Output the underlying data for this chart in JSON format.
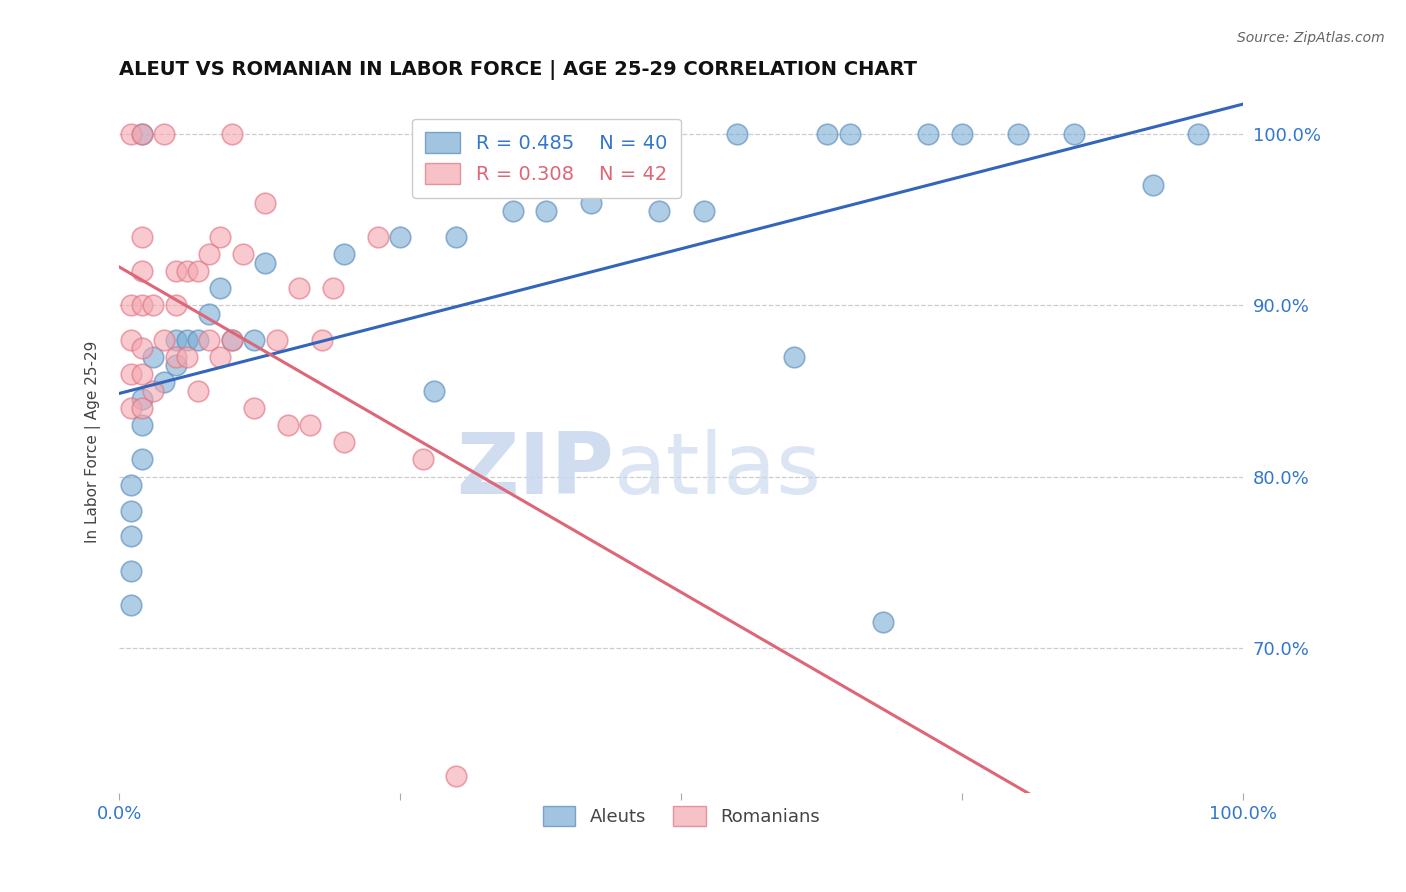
{
  "title": "ALEUT VS ROMANIAN IN LABOR FORCE | AGE 25-29 CORRELATION CHART",
  "source": "Source: ZipAtlas.com",
  "ylabel": "In Labor Force | Age 25-29",
  "xlim": [
    0.0,
    1.0
  ],
  "ylim": [
    0.615,
    1.025
  ],
  "ytick_positions": [
    0.7,
    0.8,
    0.9,
    1.0
  ],
  "ytick_labels": [
    "70.0%",
    "80.0%",
    "90.0%",
    "100.0%"
  ],
  "grid_color": "#cccccc",
  "background_color": "#ffffff",
  "aleut_color": "#7aadd4",
  "aleut_edge_color": "#5588bb",
  "romanian_color": "#f4a8b0",
  "romanian_edge_color": "#e07080",
  "aleut_line_color": "#3366bb",
  "romanian_line_color": "#dd6677",
  "aleut_R": 0.485,
  "aleut_N": 40,
  "romanian_R": 0.308,
  "romanian_N": 42,
  "watermark_zip": "ZIP",
  "watermark_atlas": "atlas",
  "aleut_x": [
    0.01,
    0.01,
    0.01,
    0.01,
    0.01,
    0.02,
    0.02,
    0.02,
    0.02,
    0.03,
    0.04,
    0.05,
    0.05,
    0.06,
    0.07,
    0.08,
    0.09,
    0.1,
    0.12,
    0.13,
    0.2,
    0.25,
    0.28,
    0.3,
    0.35,
    0.38,
    0.42,
    0.48,
    0.52,
    0.55,
    0.6,
    0.63,
    0.65,
    0.68,
    0.72,
    0.75,
    0.8,
    0.85,
    0.92,
    0.96
  ],
  "aleut_y": [
    0.725,
    0.745,
    0.765,
    0.78,
    0.795,
    0.81,
    0.83,
    0.845,
    1.0,
    0.87,
    0.855,
    0.865,
    0.88,
    0.88,
    0.88,
    0.895,
    0.91,
    0.88,
    0.88,
    0.925,
    0.93,
    0.94,
    0.85,
    0.94,
    0.955,
    0.955,
    0.96,
    0.955,
    0.955,
    1.0,
    0.87,
    1.0,
    1.0,
    0.715,
    1.0,
    1.0,
    1.0,
    1.0,
    0.97,
    1.0
  ],
  "romanian_x": [
    0.01,
    0.01,
    0.01,
    0.01,
    0.01,
    0.02,
    0.02,
    0.02,
    0.02,
    0.02,
    0.02,
    0.02,
    0.03,
    0.03,
    0.04,
    0.04,
    0.05,
    0.05,
    0.05,
    0.06,
    0.06,
    0.07,
    0.07,
    0.08,
    0.08,
    0.09,
    0.09,
    0.1,
    0.1,
    0.11,
    0.12,
    0.13,
    0.14,
    0.15,
    0.16,
    0.17,
    0.18,
    0.19,
    0.2,
    0.23,
    0.27,
    0.3
  ],
  "romanian_y": [
    0.84,
    0.86,
    0.88,
    0.9,
    1.0,
    0.84,
    0.86,
    0.875,
    0.9,
    0.92,
    0.94,
    1.0,
    0.85,
    0.9,
    0.88,
    1.0,
    0.87,
    0.9,
    0.92,
    0.87,
    0.92,
    0.85,
    0.92,
    0.88,
    0.93,
    0.87,
    0.94,
    0.88,
    1.0,
    0.93,
    0.84,
    0.96,
    0.88,
    0.83,
    0.91,
    0.83,
    0.88,
    0.91,
    0.82,
    0.94,
    0.81,
    0.625
  ]
}
